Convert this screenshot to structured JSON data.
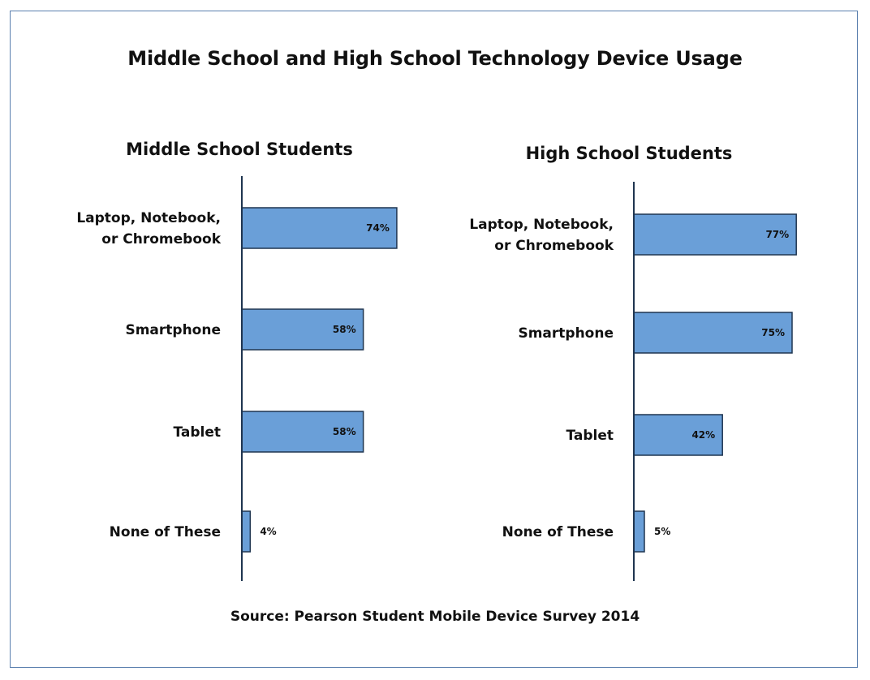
{
  "title": "Middle School and High School Technology Device Usage",
  "source": "Source: Pearson Student Mobile Device Survey 2014",
  "colors": {
    "bar_fill": "#6a9fd8",
    "bar_stroke": "#1f3550",
    "axis": "#1f3550",
    "frame": "#5a7fae"
  },
  "chart_data": [
    {
      "type": "bar",
      "orientation": "horizontal",
      "title": "Middle School Students",
      "categories": [
        [
          "Laptop, Notebook,",
          "or Chromebook"
        ],
        [
          "Smartphone"
        ],
        [
          "Tablet"
        ],
        [
          "None of These"
        ]
      ],
      "values": [
        74,
        58,
        58,
        4
      ],
      "value_labels": [
        "74%",
        "58%",
        "58%",
        "4%"
      ],
      "unit": "%",
      "xlim": [
        0,
        100
      ],
      "grid": false
    },
    {
      "type": "bar",
      "orientation": "horizontal",
      "title": "High School Students",
      "categories": [
        [
          "Laptop, Notebook,",
          "or Chromebook"
        ],
        [
          "Smartphone"
        ],
        [
          "Tablet"
        ],
        [
          "None of These"
        ]
      ],
      "values": [
        77,
        75,
        42,
        5
      ],
      "value_labels": [
        "77%",
        "75%",
        "42%",
        "5%"
      ],
      "unit": "%",
      "xlim": [
        0,
        100
      ],
      "grid": false
    }
  ]
}
